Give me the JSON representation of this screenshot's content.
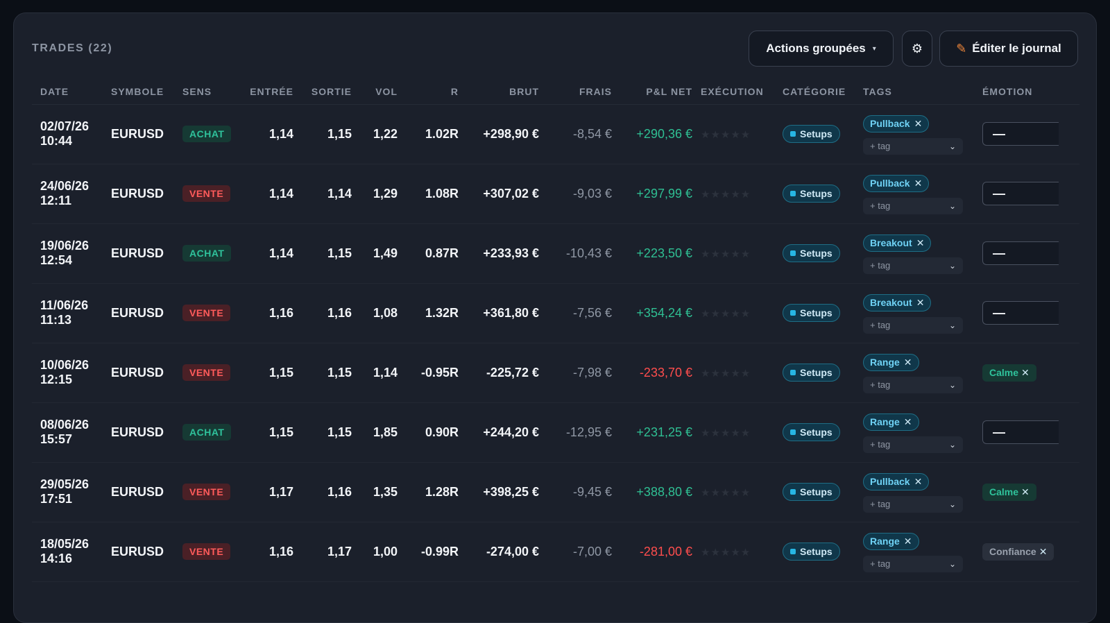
{
  "header": {
    "title": "TRADES (22)",
    "actions_label": "Actions groupées",
    "actions_caret": "▾",
    "gear_glyph": "⚙",
    "pencil_glyph": "✎",
    "edit_label": "Éditer le journal"
  },
  "columns": {
    "date": "DATE",
    "symbol": "SYMBOLE",
    "side": "SENS",
    "entry": "ENTRÉE",
    "exit": "SORTIE",
    "vol": "VOL",
    "r": "R",
    "gross": "BRUT",
    "fees": "FRAIS",
    "net": "P&L NET",
    "execution": "EXÉCUTION",
    "category": "CATÉGORIE",
    "tags": "TAGS",
    "emotion": "ÉMOTION"
  },
  "common": {
    "stars": "★★★★★",
    "tag_placeholder": "+ tag",
    "tag_remove": "✕",
    "chevron": "⌄",
    "emotion_empty": "—"
  },
  "rows": [
    {
      "date1": "02/07/26",
      "date2": "10:44",
      "symbol": "EURUSD",
      "side": "ACHAT",
      "side_type": "buy",
      "entry": "1,14",
      "exit": "1,15",
      "vol": "1,22",
      "r": "1.02R",
      "gross": "+298,90 €",
      "fees": "-8,54 €",
      "net": "+290,36 €",
      "net_type": "pos",
      "category": "Setups",
      "tag": "Pullback",
      "emotion": "",
      "emotion_type": "empty"
    },
    {
      "date1": "24/06/26",
      "date2": "12:11",
      "symbol": "EURUSD",
      "side": "VENTE",
      "side_type": "sell",
      "entry": "1,14",
      "exit": "1,14",
      "vol": "1,29",
      "r": "1.08R",
      "gross": "+307,02 €",
      "fees": "-9,03 €",
      "net": "+297,99 €",
      "net_type": "pos",
      "category": "Setups",
      "tag": "Pullback",
      "emotion": "",
      "emotion_type": "empty"
    },
    {
      "date1": "19/06/26",
      "date2": "12:54",
      "symbol": "EURUSD",
      "side": "ACHAT",
      "side_type": "buy",
      "entry": "1,14",
      "exit": "1,15",
      "vol": "1,49",
      "r": "0.87R",
      "gross": "+233,93 €",
      "fees": "-10,43 €",
      "net": "+223,50 €",
      "net_type": "pos",
      "category": "Setups",
      "tag": "Breakout",
      "emotion": "",
      "emotion_type": "empty"
    },
    {
      "date1": "11/06/26",
      "date2": "11:13",
      "symbol": "EURUSD",
      "side": "VENTE",
      "side_type": "sell",
      "entry": "1,16",
      "exit": "1,16",
      "vol": "1,08",
      "r": "1.32R",
      "gross": "+361,80 €",
      "fees": "-7,56 €",
      "net": "+354,24 €",
      "net_type": "pos",
      "category": "Setups",
      "tag": "Breakout",
      "emotion": "",
      "emotion_type": "empty"
    },
    {
      "date1": "10/06/26",
      "date2": "12:15",
      "symbol": "EURUSD",
      "side": "VENTE",
      "side_type": "sell",
      "entry": "1,15",
      "exit": "1,15",
      "vol": "1,14",
      "r": "-0.95R",
      "gross": "-225,72 €",
      "fees": "-7,98 €",
      "net": "-233,70 €",
      "net_type": "neg",
      "category": "Setups",
      "tag": "Range",
      "emotion": "Calme",
      "emotion_type": "calm"
    },
    {
      "date1": "08/06/26",
      "date2": "15:57",
      "symbol": "EURUSD",
      "side": "ACHAT",
      "side_type": "buy",
      "entry": "1,15",
      "exit": "1,15",
      "vol": "1,85",
      "r": "0.90R",
      "gross": "+244,20 €",
      "fees": "-12,95 €",
      "net": "+231,25 €",
      "net_type": "pos",
      "category": "Setups",
      "tag": "Range",
      "emotion": "",
      "emotion_type": "empty"
    },
    {
      "date1": "29/05/26",
      "date2": "17:51",
      "symbol": "EURUSD",
      "side": "VENTE",
      "side_type": "sell",
      "entry": "1,17",
      "exit": "1,16",
      "vol": "1,35",
      "r": "1.28R",
      "gross": "+398,25 €",
      "fees": "-9,45 €",
      "net": "+388,80 €",
      "net_type": "pos",
      "category": "Setups",
      "tag": "Pullback",
      "emotion": "Calme",
      "emotion_type": "calm"
    },
    {
      "date1": "18/05/26",
      "date2": "14:16",
      "symbol": "EURUSD",
      "side": "VENTE",
      "side_type": "sell",
      "entry": "1,16",
      "exit": "1,17",
      "vol": "1,00",
      "r": "-0.99R",
      "gross": "-274,00 €",
      "fees": "-7,00 €",
      "net": "-281,00 €",
      "net_type": "neg",
      "category": "Setups",
      "tag": "Range",
      "emotion": "Confiance",
      "emotion_type": "conf"
    }
  ],
  "colors": {
    "buy": "#2fc29b",
    "sell": "#ff5b5b",
    "accent": "#27b6e3"
  }
}
